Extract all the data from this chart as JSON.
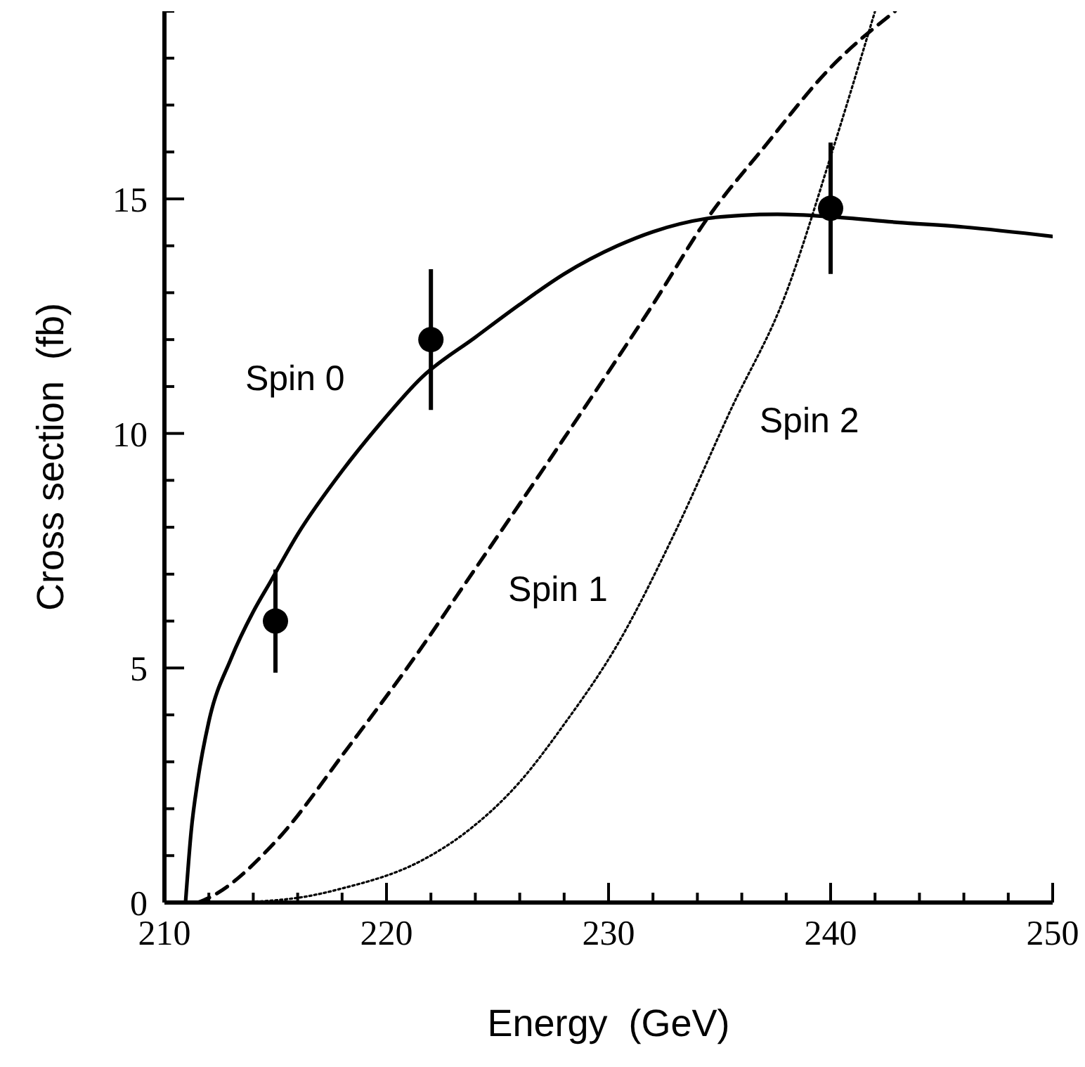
{
  "chart_data": {
    "type": "line",
    "xlabel": "Energy  (GeV)",
    "ylabel": "Cross section  (fb)",
    "xlim": [
      210,
      250
    ],
    "ylim": [
      0,
      19
    ],
    "xticks": [
      210,
      {
        "value": 212,
        "label": null
      },
      {
        "value": 214,
        "label": null
      },
      {
        "value": 216,
        "label": null
      },
      {
        "value": 218,
        "label": null
      },
      220,
      {
        "value": 222,
        "label": null
      },
      {
        "value": 224,
        "label": null
      },
      {
        "value": 226,
        "label": null
      },
      {
        "value": 228,
        "label": null
      },
      230,
      {
        "value": 232,
        "label": null
      },
      {
        "value": 234,
        "label": null
      },
      {
        "value": 236,
        "label": null
      },
      {
        "value": 238,
        "label": null
      },
      240,
      {
        "value": 242,
        "label": null
      },
      {
        "value": 244,
        "label": null
      },
      {
        "value": 246,
        "label": null
      },
      {
        "value": 248,
        "label": null
      },
      250
    ],
    "yticks": [
      0,
      {
        "value": 1,
        "label": null
      },
      {
        "value": 2,
        "label": null
      },
      {
        "value": 3,
        "label": null
      },
      {
        "value": 4,
        "label": null
      },
      5,
      {
        "value": 6,
        "label": null
      },
      {
        "value": 7,
        "label": null
      },
      {
        "value": 8,
        "label": null
      },
      {
        "value": 9,
        "label": null
      },
      10,
      {
        "value": 11,
        "label": null
      },
      {
        "value": 12,
        "label": null
      },
      {
        "value": 13,
        "label": null
      },
      {
        "value": 14,
        "label": null
      },
      15,
      {
        "value": 16,
        "label": null
      },
      {
        "value": 17,
        "label": null
      },
      {
        "value": 18,
        "label": null
      },
      {
        "value": 19,
        "label": null
      }
    ],
    "marker": "none",
    "series": [
      {
        "name": "Spin 0",
        "color": "#000000",
        "line_style": "solid",
        "x": [
          210.95,
          211.2,
          211.5,
          212,
          213,
          214,
          214.8,
          216,
          218,
          219.7,
          221.6,
          224,
          226,
          228,
          230.4,
          232,
          234.4,
          236,
          237.6,
          240,
          243,
          246,
          250
        ],
        "values": [
          0,
          1.5,
          2.6,
          3.86,
          5.2,
          6.2,
          6.86,
          7.85,
          9.2,
          10.2,
          11.2,
          12.05,
          12.75,
          13.4,
          14.0,
          14.3,
          14.58,
          14.65,
          14.67,
          14.62,
          14.5,
          14.4,
          14.2
        ]
      },
      {
        "name": "Spin 1",
        "color": "#000000",
        "line_style": "dashed",
        "x": [
          211.5,
          212,
          215.1,
          218.2,
          221.6,
          223.4,
          226,
          228,
          230.4,
          232,
          234.4,
          237,
          240,
          242.9
        ],
        "values": [
          0,
          0.1,
          1.35,
          3.26,
          5.45,
          6.7,
          8.5,
          9.9,
          11.6,
          12.75,
          14.55,
          16.1,
          17.8,
          19
        ]
      },
      {
        "name": "Spin 2",
        "color": "#000000",
        "line_style": "dotted",
        "x": [
          213,
          216,
          218,
          221.6,
          223.5,
          226,
          228,
          230.4,
          233,
          235.5,
          238,
          240,
          242
        ],
        "values": [
          0,
          0.1,
          0.3,
          0.9,
          1.47,
          2.57,
          3.8,
          5.5,
          7.9,
          10.5,
          13.0,
          15.9,
          19
        ]
      },
      {
        "type": "scatter",
        "color": "#000000",
        "marker": "circle",
        "x": [
          215,
          222,
          240
        ],
        "values": [
          6,
          12,
          14.8
        ],
        "errors": [
          1.1,
          1.5,
          1.4
        ]
      }
    ]
  }
}
